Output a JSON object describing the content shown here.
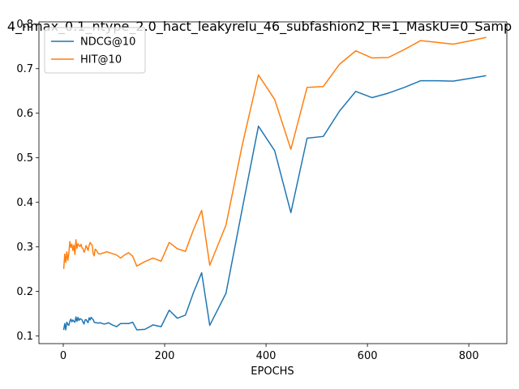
{
  "chart_data": {
    "type": "line",
    "title": "4_nmax_0.1_ntype_2.0_hact_leakyrelu_46_subfashion2_R=1_MaskU=0_Samp",
    "xlabel": "EPOCHS",
    "ylabel": "",
    "xlim": [
      -48,
      875
    ],
    "ylim": [
      0.083,
      0.805
    ],
    "xticks": [
      0,
      200,
      400,
      600,
      800
    ],
    "yticks": [
      0.1,
      0.2,
      0.3,
      0.4,
      0.5,
      0.6,
      0.7,
      0.8
    ],
    "xtick_labels": [
      "0",
      "200",
      "400",
      "600",
      "800"
    ],
    "ytick_labels": [
      "0.1",
      "0.2",
      "0.3",
      "0.4",
      "0.5",
      "0.6",
      "0.7",
      "0.8"
    ],
    "grid": false,
    "legend_position": "upper-left",
    "series": [
      {
        "name": "NDCG@10",
        "color": "#1f77b4",
        "x": [
          1,
          3,
          5,
          7,
          9,
          11,
          13,
          15,
          17,
          19,
          21,
          23,
          25,
          27,
          29,
          31,
          33,
          35,
          37,
          39,
          41,
          43,
          45,
          47,
          49,
          51,
          53,
          55,
          57,
          59,
          61,
          63,
          65,
          69,
          73,
          77,
          81,
          85,
          89,
          97,
          105,
          113,
          121,
          129,
          137,
          145,
          161,
          177,
          193,
          209,
          225,
          241,
          257,
          273,
          289,
          321,
          353,
          385,
          417,
          449,
          481,
          513,
          545,
          577,
          609,
          641,
          673,
          705,
          737,
          769,
          801,
          833
        ],
        "y": [
          0.115,
          0.128,
          0.114,
          0.131,
          0.126,
          0.124,
          0.133,
          0.138,
          0.132,
          0.136,
          0.133,
          0.131,
          0.143,
          0.133,
          0.142,
          0.135,
          0.139,
          0.138,
          0.136,
          0.131,
          0.127,
          0.136,
          0.137,
          0.133,
          0.13,
          0.141,
          0.136,
          0.142,
          0.139,
          0.137,
          0.131,
          0.13,
          0.13,
          0.129,
          0.13,
          0.128,
          0.127,
          0.128,
          0.13,
          0.125,
          0.121,
          0.128,
          0.128,
          0.128,
          0.131,
          0.114,
          0.115,
          0.125,
          0.121,
          0.158,
          0.14,
          0.147,
          0.198,
          0.242,
          0.124,
          0.196,
          0.385,
          0.571,
          0.516,
          0.377,
          0.544,
          0.548,
          0.605,
          0.649,
          0.635,
          0.645,
          0.658,
          0.673,
          0.673,
          0.672,
          0.678,
          0.684
        ]
      },
      {
        "name": "HIT@10",
        "color": "#ff7f0e",
        "x": [
          1,
          3,
          5,
          7,
          9,
          11,
          13,
          15,
          17,
          19,
          21,
          23,
          25,
          27,
          29,
          31,
          33,
          35,
          37,
          39,
          41,
          43,
          45,
          47,
          49,
          51,
          53,
          55,
          57,
          59,
          61,
          63,
          65,
          69,
          73,
          77,
          81,
          85,
          89,
          97,
          105,
          113,
          121,
          129,
          137,
          145,
          161,
          177,
          193,
          209,
          225,
          241,
          257,
          273,
          289,
          321,
          353,
          385,
          417,
          449,
          481,
          513,
          545,
          577,
          609,
          641,
          673,
          705,
          737,
          769,
          801,
          833
        ],
        "y": [
          0.252,
          0.284,
          0.265,
          0.289,
          0.27,
          0.286,
          0.312,
          0.299,
          0.306,
          0.292,
          0.304,
          0.283,
          0.316,
          0.297,
          0.307,
          0.303,
          0.301,
          0.306,
          0.298,
          0.296,
          0.288,
          0.293,
          0.303,
          0.298,
          0.292,
          0.303,
          0.31,
          0.306,
          0.304,
          0.285,
          0.28,
          0.295,
          0.293,
          0.285,
          0.284,
          0.286,
          0.287,
          0.289,
          0.288,
          0.285,
          0.282,
          0.275,
          0.282,
          0.287,
          0.279,
          0.257,
          0.267,
          0.275,
          0.268,
          0.31,
          0.296,
          0.29,
          0.339,
          0.382,
          0.259,
          0.349,
          0.528,
          0.686,
          0.631,
          0.519,
          0.658,
          0.66,
          0.71,
          0.74,
          0.724,
          0.725,
          0.743,
          0.763,
          0.759,
          0.755,
          0.762,
          0.77
        ]
      }
    ]
  }
}
